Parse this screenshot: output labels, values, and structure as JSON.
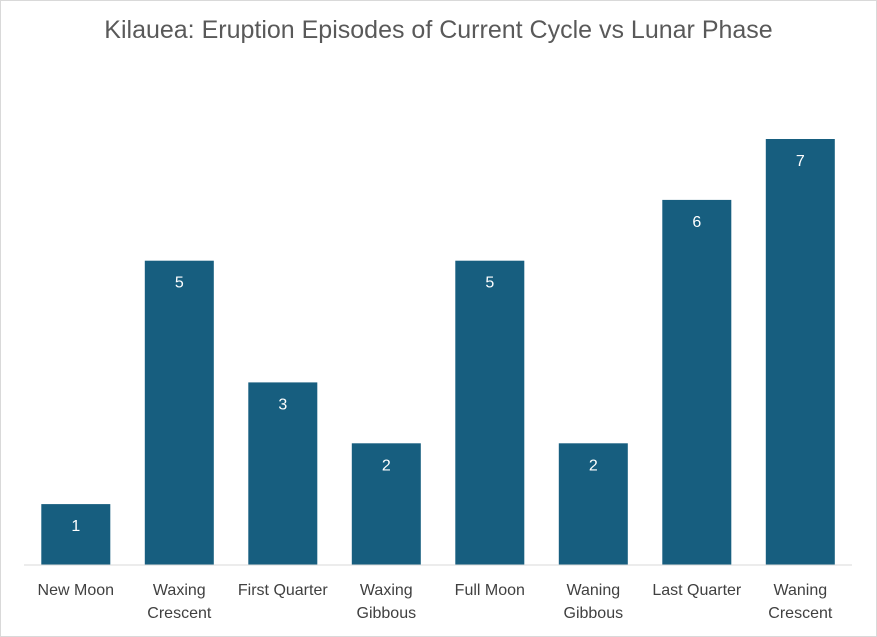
{
  "chart_data": {
    "type": "bar",
    "title": "Kilauea: Eruption Episodes of Current Cycle vs Lunar Phase",
    "xlabel": "",
    "ylabel": "",
    "categories": [
      [
        "New Moon"
      ],
      [
        "Waxing",
        "Crescent"
      ],
      [
        "First Quarter"
      ],
      [
        "Waxing",
        "Gibbous"
      ],
      [
        "Full Moon"
      ],
      [
        "Waning",
        "Gibbous"
      ],
      [
        "Last Quarter"
      ],
      [
        "Waning",
        "Crescent"
      ]
    ],
    "values": [
      1,
      5,
      3,
      2,
      5,
      2,
      6,
      7
    ],
    "ylim": [
      0,
      7
    ],
    "grid": false,
    "legend": "none",
    "data_labels": true,
    "colors": {
      "bar": "#175e7f",
      "data_label": "#ffffff",
      "axis_line": "#d9d9d9",
      "tick_label": "#404040",
      "title": "#595959"
    }
  }
}
